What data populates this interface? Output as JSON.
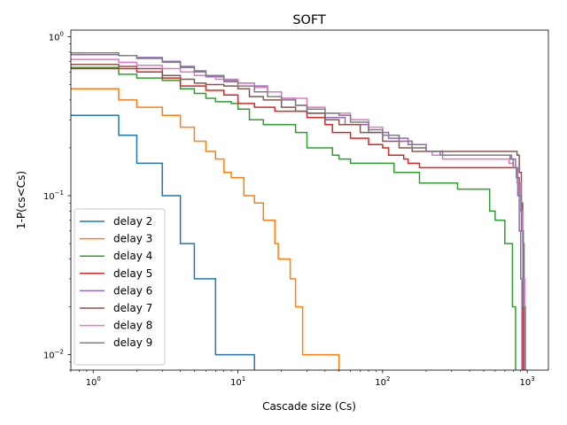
{
  "chart_data": {
    "type": "line",
    "title": "SOFT",
    "xlabel": "Cascade size (Cs)",
    "ylabel": "1-P(cs<Cs)",
    "xscale": "log",
    "yscale": "log",
    "xlim": [
      0.7,
      1400
    ],
    "ylim": [
      0.008,
      1.1
    ],
    "grid": false,
    "legend_position": "lower-left",
    "x_ticks": [
      {
        "value": 1,
        "base": "10",
        "exp": "0"
      },
      {
        "value": 10,
        "base": "10",
        "exp": "1"
      },
      {
        "value": 100,
        "base": "10",
        "exp": "2"
      },
      {
        "value": 1000,
        "base": "10",
        "exp": "3"
      }
    ],
    "y_ticks": [
      {
        "value": 0.01,
        "base": "10",
        "exp": "−2"
      },
      {
        "value": 0.1,
        "base": "10",
        "exp": "−1"
      },
      {
        "value": 1,
        "base": "10",
        "exp": "0"
      }
    ],
    "series": [
      {
        "name": "delay 2",
        "color": "#1f77b4",
        "points": [
          [
            0.7,
            0.32
          ],
          [
            1,
            0.32
          ],
          [
            1.5,
            0.24
          ],
          [
            2,
            0.16
          ],
          [
            3,
            0.1
          ],
          [
            4,
            0.05
          ],
          [
            5,
            0.03
          ],
          [
            6,
            0.03
          ],
          [
            7,
            0.01
          ],
          [
            10,
            0.01
          ],
          [
            13,
            0.01
          ],
          [
            13,
            0.005
          ]
        ]
      },
      {
        "name": "delay 3",
        "color": "#ff7f0e",
        "points": [
          [
            0.7,
            0.47
          ],
          [
            1,
            0.47
          ],
          [
            1.5,
            0.4
          ],
          [
            2,
            0.36
          ],
          [
            3,
            0.32
          ],
          [
            4,
            0.27
          ],
          [
            5,
            0.22
          ],
          [
            6,
            0.19
          ],
          [
            7,
            0.17
          ],
          [
            8,
            0.14
          ],
          [
            9,
            0.13
          ],
          [
            11,
            0.1
          ],
          [
            13,
            0.09
          ],
          [
            15,
            0.07
          ],
          [
            16,
            0.07
          ],
          [
            18,
            0.05
          ],
          [
            19,
            0.04
          ],
          [
            22,
            0.04
          ],
          [
            23,
            0.03
          ],
          [
            25,
            0.02
          ],
          [
            27,
            0.02
          ],
          [
            28,
            0.01
          ],
          [
            50,
            0.01
          ],
          [
            50,
            0.005
          ]
        ]
      },
      {
        "name": "delay 4",
        "color": "#2ca02c",
        "points": [
          [
            0.7,
            0.64
          ],
          [
            1,
            0.64
          ],
          [
            1.5,
            0.58
          ],
          [
            2,
            0.55
          ],
          [
            3,
            0.53
          ],
          [
            4,
            0.47
          ],
          [
            5,
            0.44
          ],
          [
            6,
            0.41
          ],
          [
            7,
            0.39
          ],
          [
            9,
            0.38
          ],
          [
            10,
            0.35
          ],
          [
            12,
            0.3
          ],
          [
            15,
            0.28
          ],
          [
            20,
            0.28
          ],
          [
            25,
            0.25
          ],
          [
            30,
            0.2
          ],
          [
            40,
            0.2
          ],
          [
            45,
            0.18
          ],
          [
            50,
            0.17
          ],
          [
            60,
            0.16
          ],
          [
            100,
            0.16
          ],
          [
            120,
            0.14
          ],
          [
            180,
            0.12
          ],
          [
            320,
            0.12
          ],
          [
            330,
            0.11
          ],
          [
            480,
            0.11
          ],
          [
            550,
            0.08
          ],
          [
            600,
            0.07
          ],
          [
            700,
            0.05
          ],
          [
            760,
            0.05
          ],
          [
            790,
            0.02
          ],
          [
            830,
            0.008
          ]
        ]
      },
      {
        "name": "delay 5",
        "color": "#d62728",
        "points": [
          [
            0.7,
            0.63
          ],
          [
            1,
            0.63
          ],
          [
            1.5,
            0.63
          ],
          [
            2,
            0.6
          ],
          [
            3,
            0.55
          ],
          [
            4,
            0.49
          ],
          [
            6,
            0.46
          ],
          [
            8,
            0.43
          ],
          [
            10,
            0.38
          ],
          [
            13,
            0.36
          ],
          [
            18,
            0.34
          ],
          [
            30,
            0.31
          ],
          [
            40,
            0.28
          ],
          [
            45,
            0.25
          ],
          [
            60,
            0.23
          ],
          [
            80,
            0.21
          ],
          [
            100,
            0.2
          ],
          [
            110,
            0.18
          ],
          [
            140,
            0.17
          ],
          [
            150,
            0.16
          ],
          [
            180,
            0.15
          ],
          [
            220,
            0.15
          ],
          [
            400,
            0.15
          ],
          [
            500,
            0.15
          ],
          [
            800,
            0.15
          ],
          [
            850,
            0.13
          ],
          [
            880,
            0.11
          ],
          [
            900,
            0.09
          ],
          [
            920,
            0.06
          ],
          [
            935,
            0.008
          ]
        ]
      },
      {
        "name": "delay 6",
        "color": "#9467bd",
        "points": [
          [
            0.7,
            0.77
          ],
          [
            1,
            0.77
          ],
          [
            1.5,
            0.76
          ],
          [
            2,
            0.74
          ],
          [
            3,
            0.7
          ],
          [
            4,
            0.65
          ],
          [
            5,
            0.61
          ],
          [
            6,
            0.56
          ],
          [
            8,
            0.53
          ],
          [
            10,
            0.51
          ],
          [
            13,
            0.49
          ],
          [
            16,
            0.45
          ],
          [
            20,
            0.41
          ],
          [
            25,
            0.37
          ],
          [
            30,
            0.33
          ],
          [
            40,
            0.31
          ],
          [
            55,
            0.28
          ],
          [
            80,
            0.25
          ],
          [
            110,
            0.23
          ],
          [
            150,
            0.21
          ],
          [
            200,
            0.19
          ],
          [
            260,
            0.18
          ],
          [
            400,
            0.18
          ],
          [
            500,
            0.18
          ],
          [
            700,
            0.18
          ],
          [
            780,
            0.17
          ],
          [
            830,
            0.15
          ],
          [
            860,
            0.1
          ],
          [
            880,
            0.06
          ],
          [
            900,
            0.03
          ],
          [
            920,
            0.008
          ]
        ]
      },
      {
        "name": "delay 7",
        "color": "#8c564b",
        "points": [
          [
            0.7,
            0.67
          ],
          [
            1,
            0.67
          ],
          [
            1.5,
            0.65
          ],
          [
            2,
            0.63
          ],
          [
            3,
            0.57
          ],
          [
            4,
            0.54
          ],
          [
            5,
            0.51
          ],
          [
            6,
            0.5
          ],
          [
            8,
            0.49
          ],
          [
            10,
            0.47
          ],
          [
            12,
            0.42
          ],
          [
            15,
            0.4
          ],
          [
            20,
            0.36
          ],
          [
            25,
            0.34
          ],
          [
            30,
            0.33
          ],
          [
            40,
            0.3
          ],
          [
            50,
            0.28
          ],
          [
            70,
            0.25
          ],
          [
            100,
            0.22
          ],
          [
            130,
            0.2
          ],
          [
            160,
            0.19
          ],
          [
            200,
            0.19
          ],
          [
            300,
            0.19
          ],
          [
            600,
            0.19
          ],
          [
            800,
            0.19
          ],
          [
            850,
            0.18
          ],
          [
            880,
            0.14
          ],
          [
            910,
            0.09
          ],
          [
            930,
            0.05
          ],
          [
            950,
            0.008
          ]
        ]
      },
      {
        "name": "delay 8",
        "color": "#e377c2",
        "points": [
          [
            0.7,
            0.72
          ],
          [
            1,
            0.72
          ],
          [
            1.5,
            0.69
          ],
          [
            2,
            0.66
          ],
          [
            3,
            0.63
          ],
          [
            4,
            0.6
          ],
          [
            5,
            0.57
          ],
          [
            7,
            0.54
          ],
          [
            10,
            0.51
          ],
          [
            13,
            0.48
          ],
          [
            16,
            0.45
          ],
          [
            20,
            0.41
          ],
          [
            30,
            0.36
          ],
          [
            40,
            0.33
          ],
          [
            60,
            0.3
          ],
          [
            80,
            0.27
          ],
          [
            100,
            0.24
          ],
          [
            130,
            0.22
          ],
          [
            160,
            0.2
          ],
          [
            200,
            0.19
          ],
          [
            220,
            0.18
          ],
          [
            260,
            0.17
          ],
          [
            400,
            0.17
          ],
          [
            500,
            0.17
          ],
          [
            700,
            0.17
          ],
          [
            750,
            0.16
          ],
          [
            800,
            0.15
          ],
          [
            850,
            0.12
          ],
          [
            900,
            0.08
          ],
          [
            930,
            0.03
          ],
          [
            960,
            0.008
          ]
        ]
      },
      {
        "name": "delay 9",
        "color": "#7f7f7f",
        "points": [
          [
            0.7,
            0.79
          ],
          [
            1,
            0.79
          ],
          [
            1.5,
            0.76
          ],
          [
            2,
            0.73
          ],
          [
            3,
            0.69
          ],
          [
            4,
            0.64
          ],
          [
            5,
            0.6
          ],
          [
            6,
            0.57
          ],
          [
            8,
            0.52
          ],
          [
            10,
            0.49
          ],
          [
            13,
            0.45
          ],
          [
            16,
            0.42
          ],
          [
            20,
            0.4
          ],
          [
            25,
            0.37
          ],
          [
            30,
            0.35
          ],
          [
            40,
            0.33
          ],
          [
            50,
            0.32
          ],
          [
            60,
            0.29
          ],
          [
            80,
            0.26
          ],
          [
            100,
            0.24
          ],
          [
            130,
            0.22
          ],
          [
            160,
            0.2
          ],
          [
            200,
            0.19
          ],
          [
            250,
            0.18
          ],
          [
            400,
            0.18
          ],
          [
            500,
            0.18
          ],
          [
            700,
            0.18
          ],
          [
            760,
            0.17
          ],
          [
            800,
            0.15
          ],
          [
            840,
            0.13
          ],
          [
            880,
            0.1
          ],
          [
            910,
            0.06
          ],
          [
            940,
            0.02
          ],
          [
            970,
            0.008
          ]
        ]
      }
    ]
  }
}
